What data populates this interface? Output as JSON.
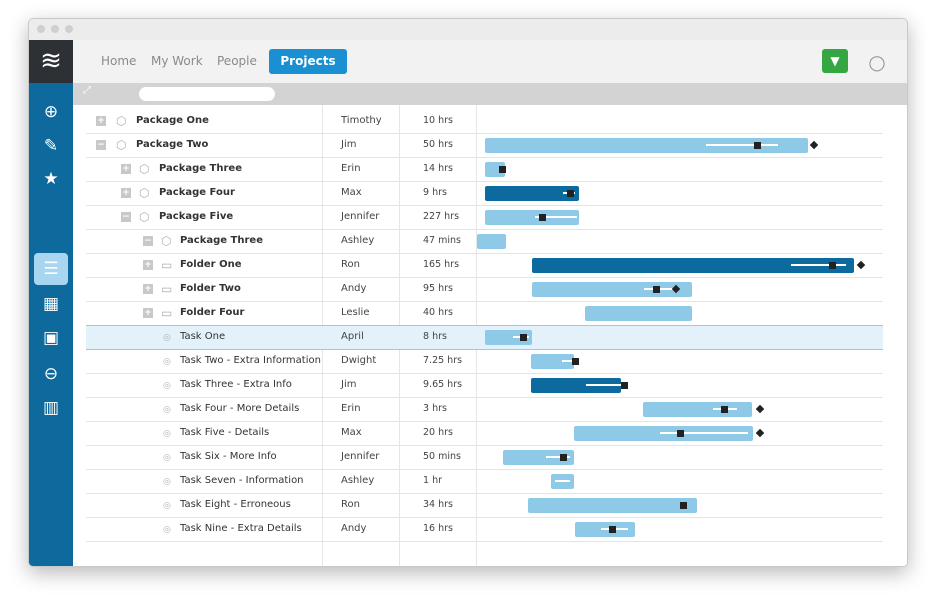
{
  "app": {
    "logo_glyph": "≋",
    "colors": {
      "sidebar": "#0e6a9d",
      "accent": "#1a8fd2",
      "bar_light": "#8ecae7",
      "bar_dark": "#0d6a9e",
      "green": "#35a742",
      "selected_row": "#e3f2fa"
    }
  },
  "sidebar": {
    "items": [
      {
        "icon": "add-circle-icon",
        "glyph": "⊕"
      },
      {
        "icon": "pencil-icon",
        "glyph": "✎"
      },
      {
        "icon": "star-icon",
        "glyph": "★"
      },
      {
        "icon": "gantt-view-icon",
        "glyph": "☰",
        "active": true
      },
      {
        "icon": "dashboard-icon",
        "glyph": "▦"
      },
      {
        "icon": "briefcase-icon",
        "glyph": "▣"
      },
      {
        "icon": "remove-circle-icon",
        "glyph": "⊖"
      },
      {
        "icon": "trash-icon",
        "glyph": "▥"
      }
    ]
  },
  "nav": {
    "links": [
      "Home",
      "My Work",
      "People"
    ],
    "active": "Projects",
    "dropdown_glyph": "▼",
    "search_glyph": "○"
  },
  "toolbar": {
    "expand_glyph": "⤢",
    "search_placeholder": ""
  },
  "rows": [
    {
      "name": "Package One",
      "owner": "Timothy",
      "hours": "10 hrs",
      "level": 0,
      "bold": true,
      "type": "package",
      "toggle": "+"
    },
    {
      "name": "Package Two",
      "owner": "Jim",
      "hours": "50 hrs",
      "level": 0,
      "bold": true,
      "type": "package",
      "toggle": "−"
    },
    {
      "name": "Package Three",
      "owner": "Erin",
      "hours": "14 hrs",
      "level": 1,
      "bold": true,
      "type": "package",
      "toggle": "+"
    },
    {
      "name": "Package Four",
      "owner": "Max",
      "hours": "9 hrs",
      "level": 1,
      "bold": true,
      "type": "package",
      "toggle": "+"
    },
    {
      "name": "Package Five",
      "owner": "Jennifer",
      "hours": "227 hrs",
      "level": 1,
      "bold": true,
      "type": "package",
      "toggle": "−"
    },
    {
      "name": "Package Three",
      "owner": "Ashley",
      "hours": "47 mins",
      "level": 2,
      "bold": true,
      "type": "package",
      "toggle": "−"
    },
    {
      "name": "Folder One",
      "owner": "Ron",
      "hours": "165 hrs",
      "level": 2,
      "bold": true,
      "type": "folder",
      "toggle": "+"
    },
    {
      "name": "Folder Two",
      "owner": "Andy",
      "hours": "95 hrs",
      "level": 2,
      "bold": true,
      "type": "folder",
      "toggle": "+"
    },
    {
      "name": "Folder Four",
      "owner": "Leslie",
      "hours": "40 hrs",
      "level": 2,
      "bold": true,
      "type": "folder",
      "toggle": "+"
    },
    {
      "name": "Task One",
      "owner": "April",
      "hours": "8 hrs",
      "level": 3,
      "bold": false,
      "type": "task",
      "selected": true
    },
    {
      "name": "Task Two - Extra Information",
      "owner": "Dwight",
      "hours": "7.25 hrs",
      "level": 3,
      "bold": false,
      "type": "task"
    },
    {
      "name": "Task Three - Extra Info",
      "owner": "Jim",
      "hours": "9.65 hrs",
      "level": 3,
      "bold": false,
      "type": "task"
    },
    {
      "name": "Task Four - More Details",
      "owner": "Erin",
      "hours": "3 hrs",
      "level": 3,
      "bold": false,
      "type": "task"
    },
    {
      "name": "Task Five - Details",
      "owner": "Max",
      "hours": "20 hrs",
      "level": 3,
      "bold": false,
      "type": "task"
    },
    {
      "name": "Task Six - More Info",
      "owner": "Jennifer",
      "hours": "50 mins",
      "level": 3,
      "bold": false,
      "type": "task"
    },
    {
      "name": "Task Seven - Information",
      "owner": "Ashley",
      "hours": "1 hr",
      "level": 3,
      "bold": false,
      "type": "task"
    },
    {
      "name": "Task Eight - Erroneous",
      "owner": "Ron",
      "hours": "34 hrs",
      "level": 3,
      "bold": false,
      "type": "task"
    },
    {
      "name": "Task Nine - Extra Details",
      "owner": "Andy",
      "hours": "16 hrs",
      "level": 3,
      "bold": false,
      "type": "task"
    }
  ]
}
